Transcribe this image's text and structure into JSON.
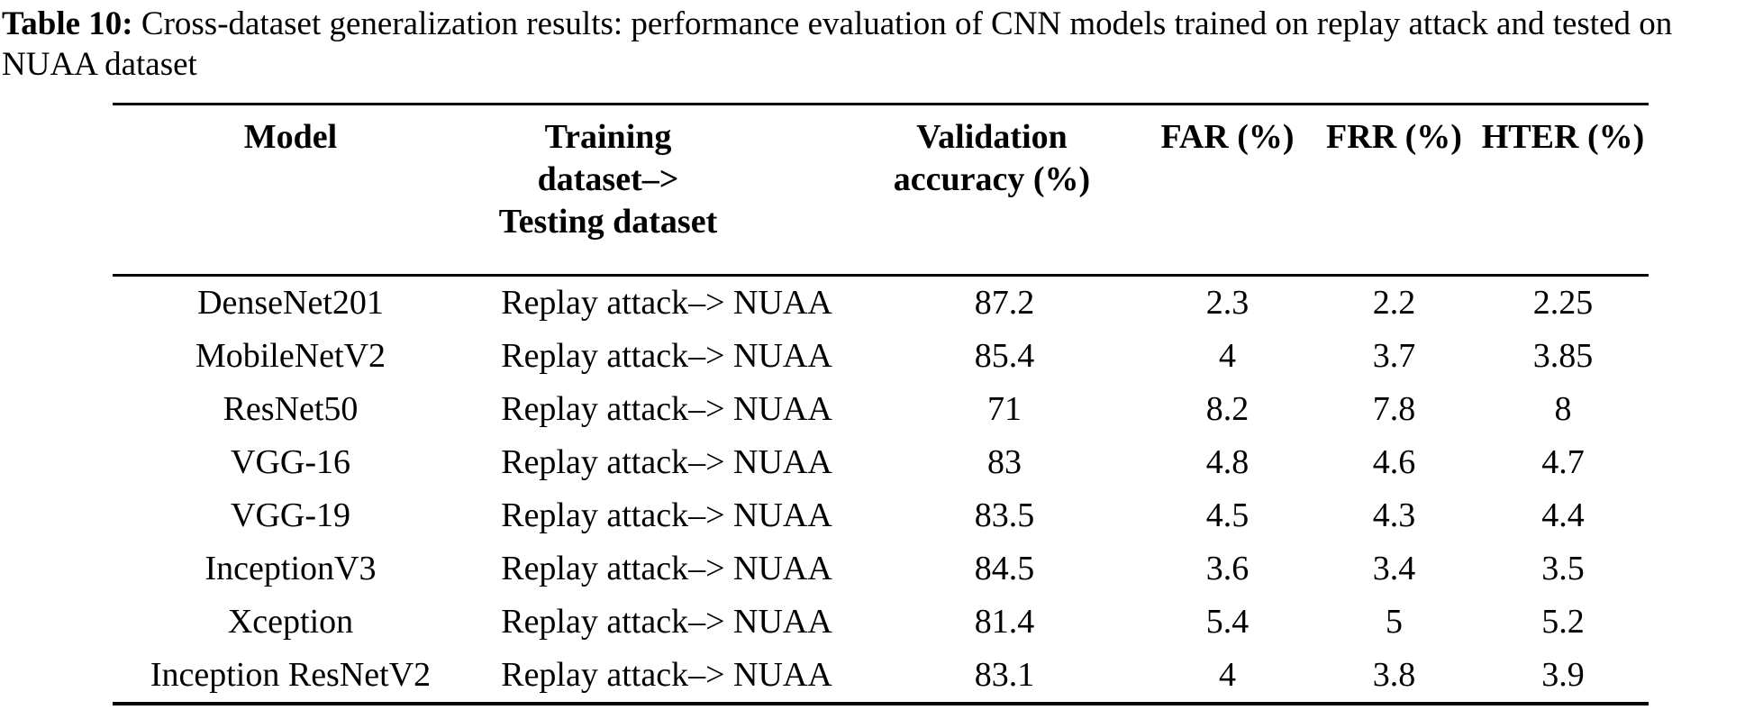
{
  "caption": {
    "label": "Table 10:",
    "text": " Cross-dataset generalization results: performance evaluation of CNN models trained on replay attack and tested on NUAA dataset"
  },
  "table": {
    "columns": [
      {
        "label": "Model",
        "lines": [
          "Model"
        ]
      },
      {
        "label": "Training dataset–> Testing dataset",
        "lines": [
          "Training",
          "dataset–>",
          "Testing dataset"
        ]
      },
      {
        "label": "Validation accuracy (%)",
        "lines": [
          "Validation",
          "accuracy (%)"
        ]
      },
      {
        "label": "FAR (%)",
        "lines": [
          "FAR (%)"
        ]
      },
      {
        "label": "FRR (%)",
        "lines": [
          "FRR (%)"
        ]
      },
      {
        "label": "HTER (%)",
        "lines": [
          "HTER (%)"
        ]
      }
    ],
    "rows": [
      {
        "model": "DenseNet201",
        "dataset": "Replay attack–> NUAA",
        "val_acc": "87.2",
        "far": "2.3",
        "frr": "2.2",
        "hter": "2.25"
      },
      {
        "model": "MobileNetV2",
        "dataset": "Replay attack–> NUAA",
        "val_acc": "85.4",
        "far": "4",
        "frr": "3.7",
        "hter": "3.85"
      },
      {
        "model": "ResNet50",
        "dataset": "Replay attack–> NUAA",
        "val_acc": "71",
        "far": "8.2",
        "frr": "7.8",
        "hter": "8"
      },
      {
        "model": "VGG-16",
        "dataset": "Replay attack–> NUAA",
        "val_acc": "83",
        "far": "4.8",
        "frr": "4.6",
        "hter": "4.7"
      },
      {
        "model": "VGG-19",
        "dataset": "Replay attack–> NUAA",
        "val_acc": "83.5",
        "far": "4.5",
        "frr": "4.3",
        "hter": "4.4"
      },
      {
        "model": "InceptionV3",
        "dataset": "Replay attack–> NUAA",
        "val_acc": "84.5",
        "far": "3.6",
        "frr": "3.4",
        "hter": "3.5"
      },
      {
        "model": "Xception",
        "dataset": "Replay attack–> NUAA",
        "val_acc": "81.4",
        "far": "5.4",
        "frr": "5",
        "hter": "5.2"
      },
      {
        "model": "Inception ResNetV2",
        "dataset": "Replay attack–> NUAA",
        "val_acc": "83.1",
        "far": "4",
        "frr": "3.8",
        "hter": "3.9"
      }
    ]
  }
}
